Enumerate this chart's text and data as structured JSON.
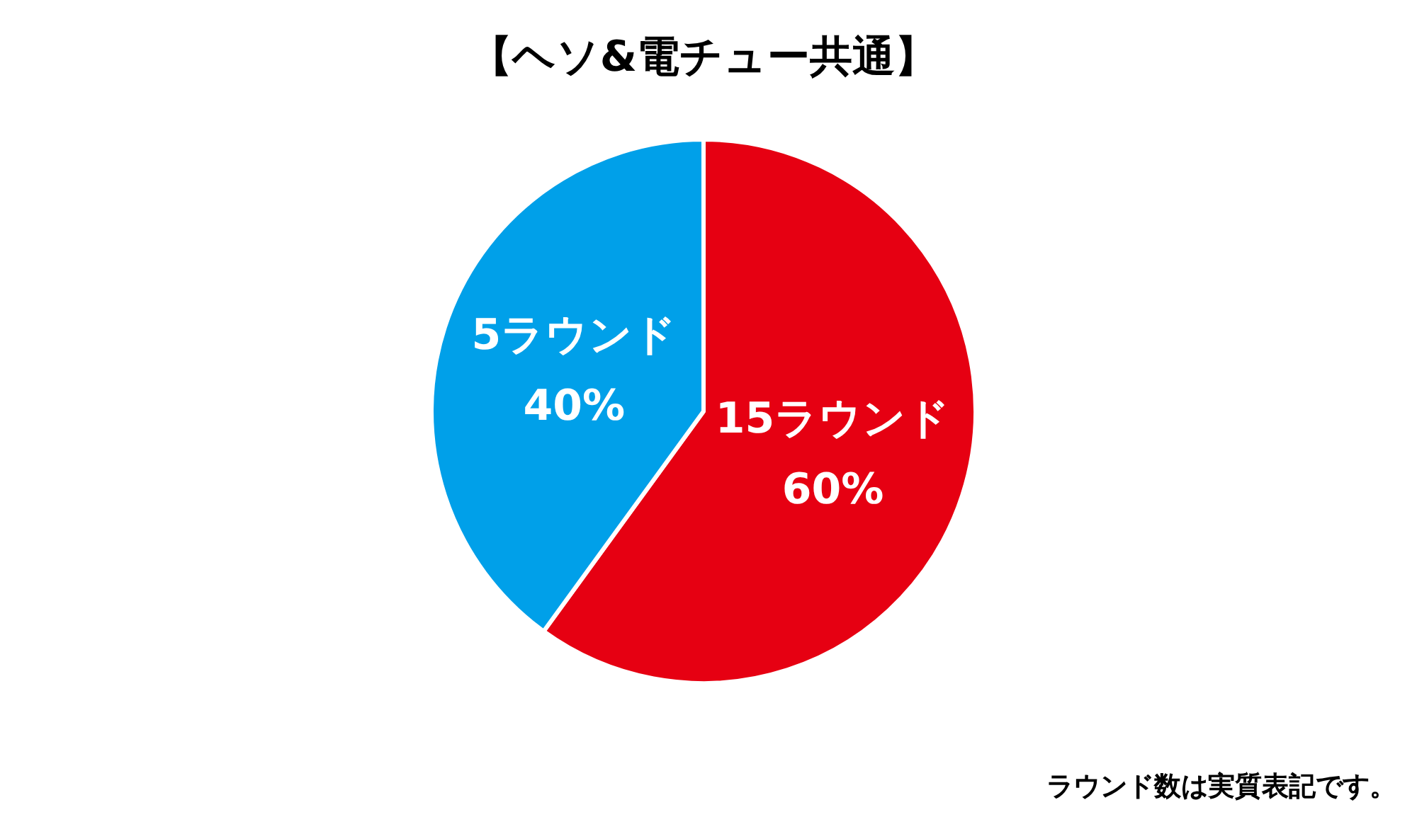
{
  "chart_data": {
    "type": "pie",
    "title": "【ヘソ&電チュー共通】",
    "categories": [
      "15ラウンド",
      "5ラウンド"
    ],
    "values": [
      60,
      40
    ],
    "colors": [
      "#e60012",
      "#00a0e9"
    ],
    "value_labels": [
      "60%",
      "40%"
    ],
    "annotations": [
      "ラウンド数は実質表記です。"
    ]
  }
}
